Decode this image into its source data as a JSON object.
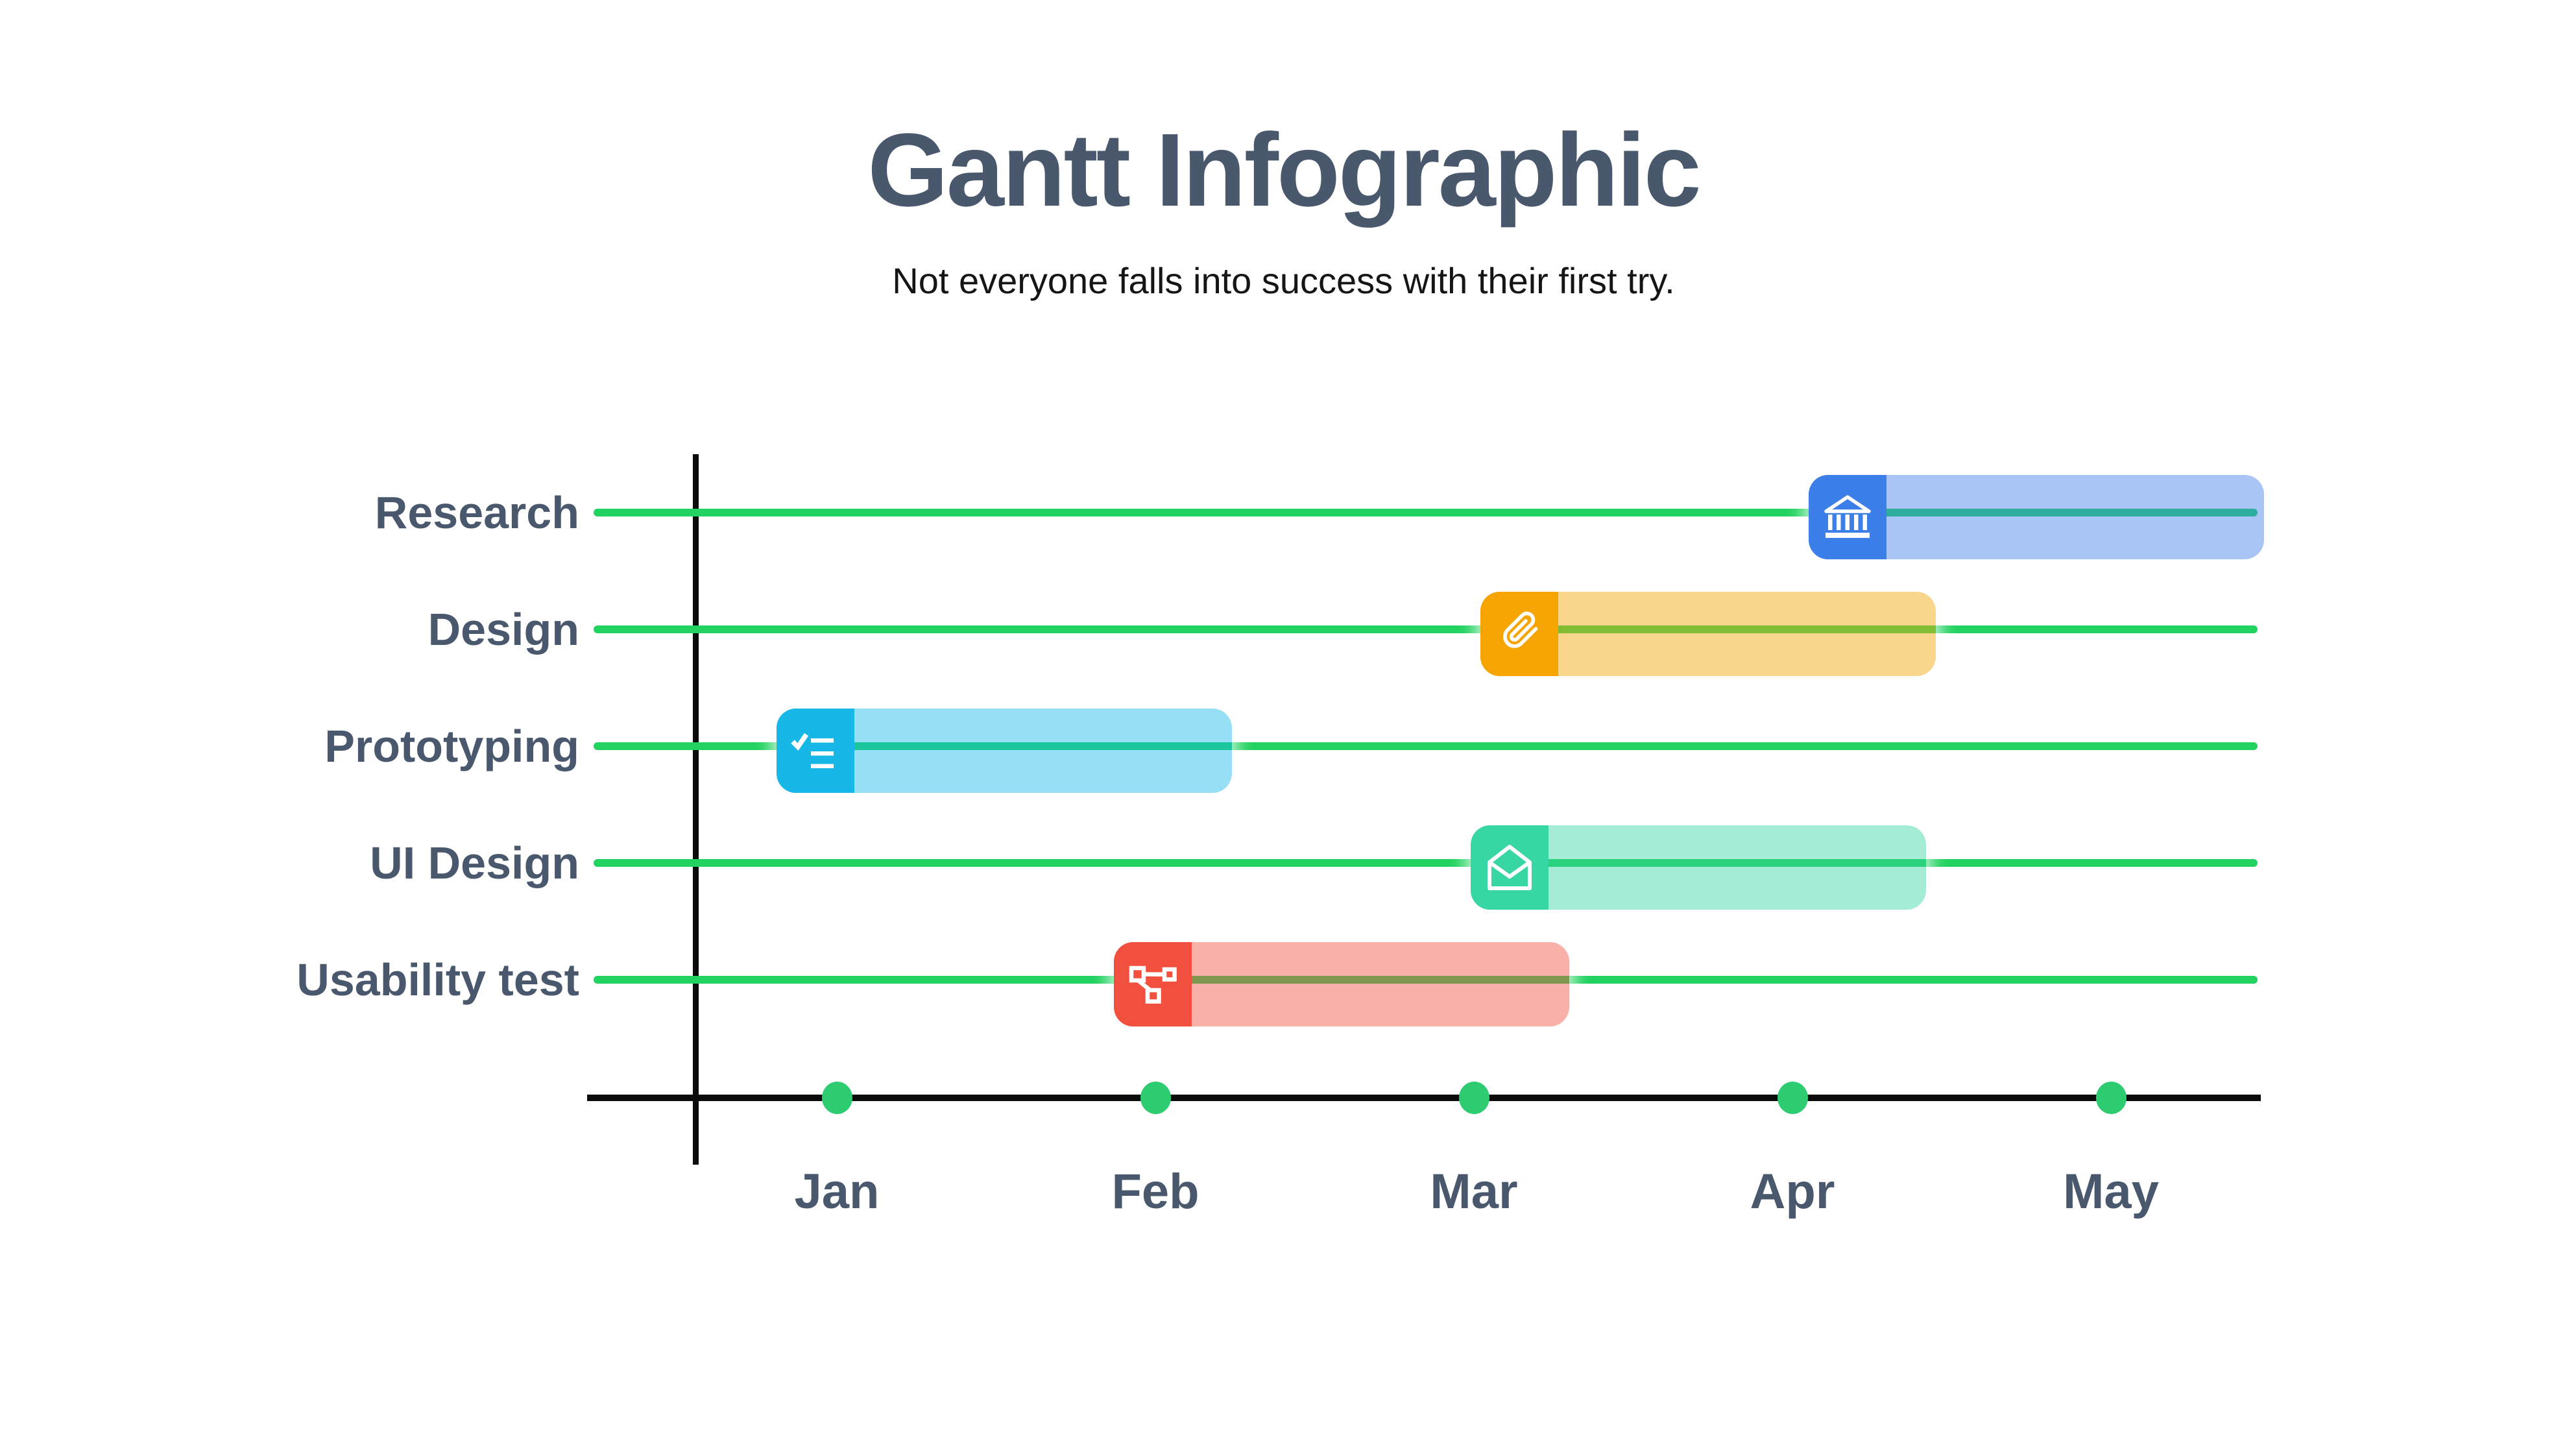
{
  "header": {
    "title": "Gantt Infographic",
    "subtitle": "Not everyone falls into success with their first try."
  },
  "chart_data": {
    "type": "gantt",
    "title": "Gantt Infographic",
    "subtitle": "Not everyone falls into success with their first try.",
    "x_axis": {
      "tick_labels": [
        "Jan",
        "Feb",
        "Mar",
        "Apr",
        "May"
      ],
      "unit": "month",
      "range_months": [
        -0.8,
        4.6
      ]
    },
    "grid": "horizontal-row-lines",
    "legend": false,
    "colors": {
      "title_text": "#49586C",
      "label_text": "#49586C",
      "subtitle_text": "#151515",
      "row_line_green": "#21D25F",
      "month_dot_green": "#2ECC71",
      "axis_black": "#0B0B0B",
      "bar_fill_alpha": 0.45
    },
    "tasks": [
      {
        "label": "Research",
        "icon": "bank-icon",
        "color": "#3D7FE8",
        "start_month": 3.05,
        "end_month": 4.48
      },
      {
        "label": "Design",
        "icon": "paperclip-icon",
        "color": "#F5A402",
        "start_month": 2.02,
        "end_month": 3.45
      },
      {
        "label": "Prototyping",
        "icon": "checklist-icon",
        "color": "#17B8E8",
        "start_month": -0.19,
        "end_month": 1.24
      },
      {
        "label": "UI Design",
        "icon": "envelope-icon",
        "color": "#38D5A5",
        "start_month": 1.99,
        "end_month": 3.42
      },
      {
        "label": "Usability test",
        "icon": "workflow-icon",
        "color": "#F2503E",
        "start_month": 0.87,
        "end_month": 2.3
      }
    ]
  }
}
